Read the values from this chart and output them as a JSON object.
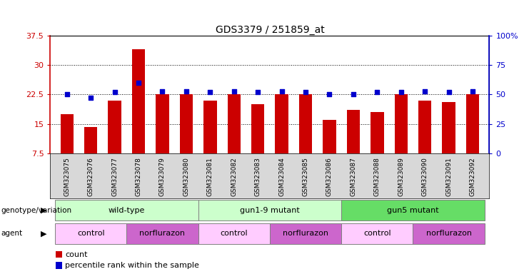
{
  "title": "GDS3379 / 251859_at",
  "samples": [
    "GSM323075",
    "GSM323076",
    "GSM323077",
    "GSM323078",
    "GSM323079",
    "GSM323080",
    "GSM323081",
    "GSM323082",
    "GSM323083",
    "GSM323084",
    "GSM323085",
    "GSM323086",
    "GSM323087",
    "GSM323088",
    "GSM323089",
    "GSM323090",
    "GSM323091",
    "GSM323092"
  ],
  "counts": [
    17.5,
    14.2,
    21.0,
    34.0,
    22.5,
    22.5,
    21.0,
    22.5,
    20.0,
    22.5,
    22.5,
    16.0,
    18.5,
    18.0,
    22.5,
    21.0,
    20.5,
    22.5
  ],
  "percentile_ranks": [
    50,
    47,
    52,
    60,
    53,
    53,
    52,
    53,
    52,
    53,
    52,
    50,
    50,
    52,
    52,
    53,
    52,
    53
  ],
  "ylim": [
    7.5,
    37.5
  ],
  "yticks_left": [
    7.5,
    15.0,
    22.5,
    30.0,
    37.5
  ],
  "ytick_left_labels": [
    "7.5",
    "15",
    "22.5",
    "30",
    "37.5"
  ],
  "yticks_right": [
    0,
    25,
    50,
    75,
    100
  ],
  "ytick_right_labels": [
    "0",
    "25",
    "50",
    "75",
    "100%"
  ],
  "bar_color": "#cc0000",
  "dot_color": "#0000cc",
  "left_axis_color": "#cc0000",
  "right_axis_color": "#0000cc",
  "plot_bg_color": "#ffffff",
  "xtick_bg_color": "#d8d8d8",
  "genotype_groups": [
    {
      "label": "wild-type",
      "start": 0,
      "end": 6,
      "color": "#ccffcc"
    },
    {
      "label": "gun1-9 mutant",
      "start": 6,
      "end": 12,
      "color": "#ccffcc"
    },
    {
      "label": "gun5 mutant",
      "start": 12,
      "end": 18,
      "color": "#66dd66"
    }
  ],
  "agent_groups": [
    {
      "label": "control",
      "start": 0,
      "end": 3,
      "color": "#ffccff"
    },
    {
      "label": "norflurazon",
      "start": 3,
      "end": 6,
      "color": "#cc66cc"
    },
    {
      "label": "control",
      "start": 6,
      "end": 9,
      "color": "#ffccff"
    },
    {
      "label": "norflurazon",
      "start": 9,
      "end": 12,
      "color": "#cc66cc"
    },
    {
      "label": "control",
      "start": 12,
      "end": 15,
      "color": "#ffccff"
    },
    {
      "label": "norflurazon",
      "start": 15,
      "end": 18,
      "color": "#cc66cc"
    }
  ],
  "genotype_row_label": "genotype/variation",
  "agent_row_label": "agent"
}
